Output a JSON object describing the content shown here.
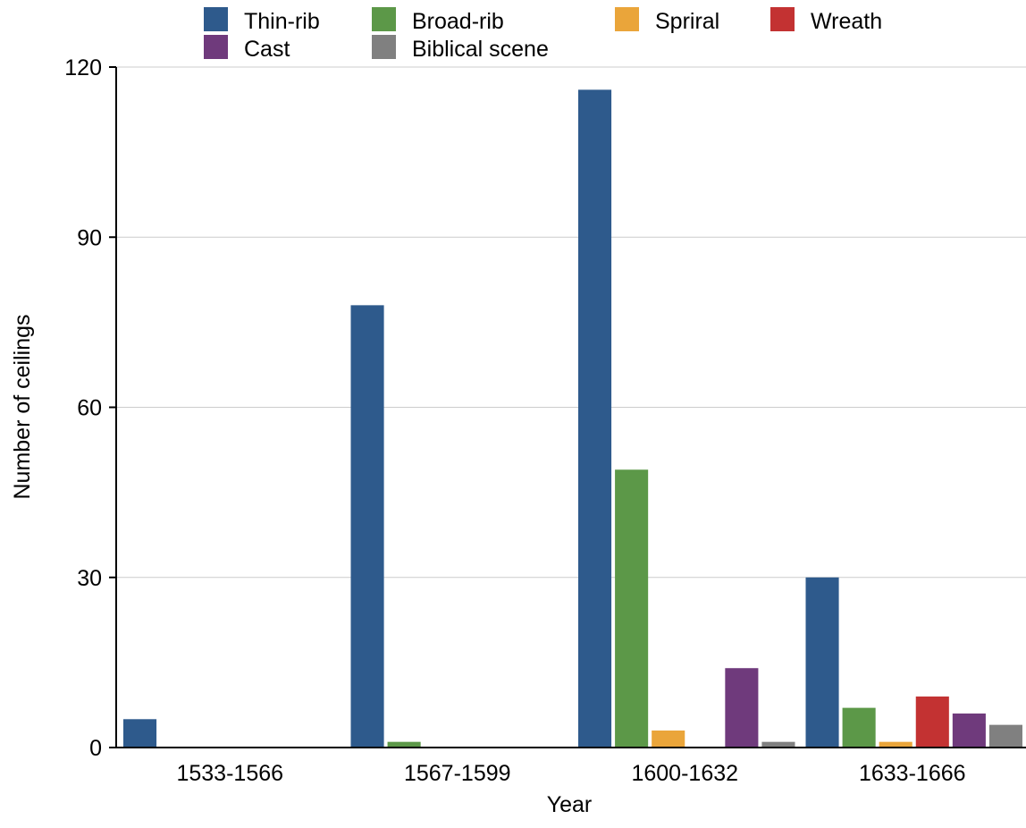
{
  "chart_data": {
    "type": "bar",
    "title": "",
    "xlabel": "Year",
    "ylabel": "Number of ceilings",
    "categories": [
      "1533-1566",
      "1567-1599",
      "1600-1632",
      "1633-1666"
    ],
    "ylim": [
      0,
      120
    ],
    "yticks": [
      0,
      30,
      60,
      90,
      120
    ],
    "grid": true,
    "legend_position": "top",
    "series": [
      {
        "name": "Thin-rib",
        "color": "#2e5a8c",
        "values": [
          5,
          78,
          116,
          30
        ]
      },
      {
        "name": "Broad-rib",
        "color": "#5c9848",
        "values": [
          0,
          1,
          49,
          7
        ]
      },
      {
        "name": "Spriral",
        "color": "#eaa53a",
        "values": [
          0,
          0,
          3,
          1
        ]
      },
      {
        "name": "Wreath",
        "color": "#c33232",
        "values": [
          0,
          0,
          0,
          9
        ]
      },
      {
        "name": "Cast",
        "color": "#6f3a7c",
        "values": [
          0,
          0,
          14,
          6
        ]
      },
      {
        "name": "Biblical scene",
        "color": "#808080",
        "values": [
          0,
          0,
          1,
          4
        ]
      }
    ]
  }
}
